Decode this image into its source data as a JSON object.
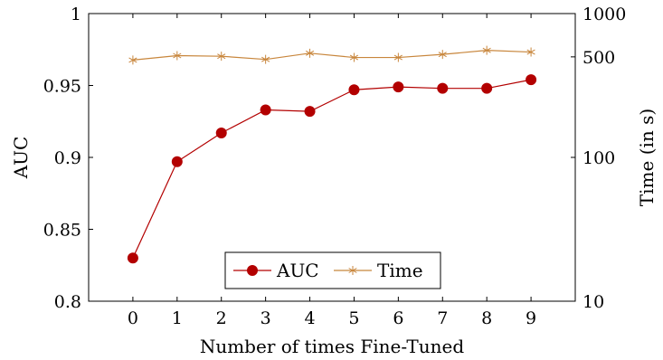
{
  "chart_data": {
    "type": "line",
    "x": [
      0,
      1,
      2,
      3,
      4,
      5,
      6,
      7,
      8,
      9
    ],
    "xlabel": "Number of times Fine-Tuned",
    "xlim": [
      -1,
      10
    ],
    "y_left": {
      "label": "AUC",
      "lim": [
        0.8,
        1.0
      ],
      "ticks": [
        "0.8",
        "0.85",
        "0.9",
        "0.95",
        "1"
      ]
    },
    "y_right": {
      "label": "Time (in s)",
      "scale": "log",
      "lim": [
        10,
        1000
      ],
      "ticks": [
        "10",
        "100",
        "500",
        "1000"
      ]
    },
    "series": [
      {
        "name": "AUC",
        "axis": "left",
        "color": "#b30000",
        "marker": "circle",
        "values": [
          0.83,
          0.897,
          0.917,
          0.933,
          0.932,
          0.947,
          0.949,
          0.948,
          0.948,
          0.954
        ]
      },
      {
        "name": "Time",
        "axis": "right",
        "color": "#c8863c",
        "marker": "star",
        "values": [
          475,
          510,
          505,
          480,
          530,
          495,
          495,
          520,
          555,
          540
        ]
      }
    ],
    "legend": {
      "position": "bottom-center",
      "entries": [
        "AUC",
        "Time"
      ]
    },
    "grid": false
  }
}
